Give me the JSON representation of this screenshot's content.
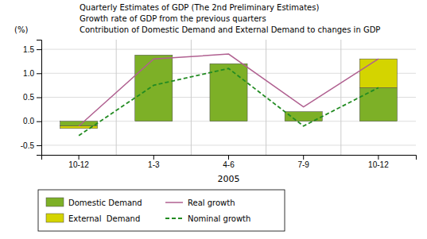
{
  "chart_data": {
    "type": "bar",
    "title": "Quarterly Estimates of GDP (The 2nd Preliminary Estimates)",
    "subtitle": "Growth rate of GDP from the previous quarters",
    "annotations": [
      "Contribution of Domestic Demand and External Demand to changes in GDP"
    ],
    "xlabel": "2005",
    "ylabel": "(%)",
    "categories": [
      "10-12",
      "1-3",
      "4-6",
      "7-9",
      "10-12"
    ],
    "stacked": true,
    "series": [
      {
        "name": "Domestic Demand",
        "type": "bar",
        "color": "#7db027",
        "values": [
          -0.1,
          1.38,
          1.2,
          0.2,
          0.7
        ]
      },
      {
        "name": "External  Demand",
        "type": "bar",
        "color": "#d4d400",
        "values": [
          -0.05,
          0.0,
          0.0,
          0.0,
          0.6
        ]
      },
      {
        "name": "Real growth",
        "type": "line",
        "color": "#b06090",
        "line_style": "solid",
        "values": [
          -0.1,
          1.3,
          1.4,
          0.3,
          1.3
        ]
      },
      {
        "name": "Nominal growth",
        "type": "line",
        "color": "#228B22",
        "line_style": "dashed",
        "values": [
          -0.3,
          0.75,
          1.1,
          -0.1,
          0.7
        ]
      }
    ],
    "ylim": [
      -0.7,
      1.7
    ],
    "yticks": [
      -0.5,
      {
        "value": 0,
        "label": "0.0"
      },
      0.5,
      {
        "value": 1,
        "label": "1.0"
      },
      1.5
    ],
    "grid": true,
    "legend": "bottom"
  }
}
